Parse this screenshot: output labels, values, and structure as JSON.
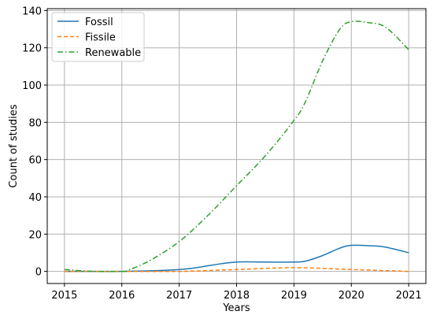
{
  "chart_data": {
    "type": "line",
    "xlabel": "Years",
    "ylabel": "Count of studies",
    "xlim": [
      2014.7,
      2021.3
    ],
    "ylim": [
      -6.5,
      141
    ],
    "x_ticks": [
      2015,
      2016,
      2017,
      2018,
      2019,
      2020,
      2021
    ],
    "y_ticks": [
      0,
      20,
      40,
      60,
      80,
      100,
      120,
      140
    ],
    "grid": true,
    "legend_position": "top-left",
    "series": [
      {
        "name": "Fossil",
        "color": "#1f77b4",
        "style": "solid",
        "x": [
          2015,
          2015.5,
          2016,
          2016.5,
          2017,
          2017.3,
          2017.6,
          2018,
          2018.5,
          2019,
          2019.2,
          2019.5,
          2019.8,
          2020,
          2020.3,
          2020.6,
          2021
        ],
        "values": [
          0,
          0,
          0,
          0.3,
          1,
          2,
          3.5,
          5,
          5,
          5,
          5.5,
          8.5,
          12.5,
          14,
          13.8,
          13,
          10
        ]
      },
      {
        "name": "Fissile",
        "color": "#ff7f0e",
        "style": "dashed",
        "x": [
          2015,
          2016,
          2017,
          2018,
          2019,
          2020,
          2021
        ],
        "values": [
          0,
          0,
          0,
          1,
          2,
          1,
          0
        ]
      },
      {
        "name": "Renewable",
        "color": "#2ca02c",
        "style": "dashdot",
        "x": [
          2015,
          2015.5,
          2016,
          2016.1,
          2016.5,
          2017,
          2017.5,
          2018,
          2018.5,
          2019,
          2019.2,
          2019.5,
          2019.8,
          2020,
          2020.3,
          2020.6,
          2021
        ],
        "values": [
          1,
          0,
          0,
          0.5,
          6,
          16,
          30,
          46,
          62,
          81,
          91,
          113,
          130,
          134,
          133.5,
          131,
          119
        ]
      }
    ]
  }
}
